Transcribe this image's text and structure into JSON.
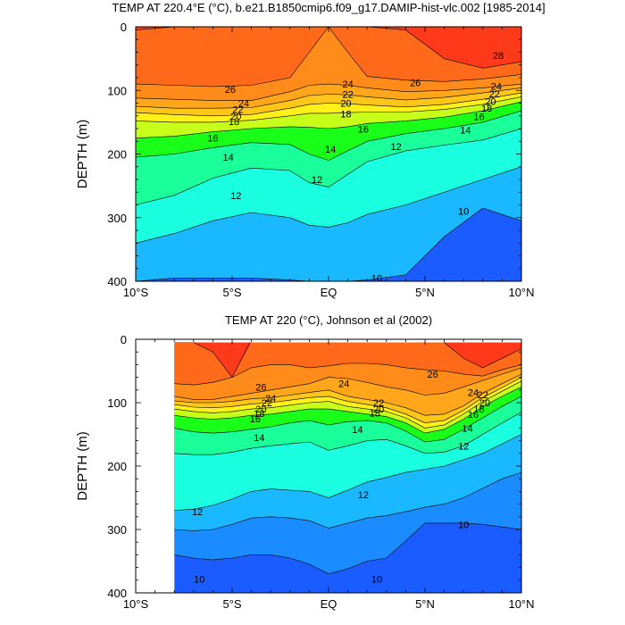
{
  "chart_data": [
    {
      "type": "contour",
      "title": "TEMP AT 220.4°E (°C), b.e21.B1850cmip6.f09_g17.DAMIP-hist-vlc.002 [1985-2014]",
      "xlabel": "",
      "ylabel": "DEPTH (m)",
      "xlim": [
        -10,
        10
      ],
      "ylim": [
        400,
        0
      ],
      "x_ticks": [
        {
          "v": -10,
          "label": "10°S"
        },
        {
          "v": -5,
          "label": "5°S"
        },
        {
          "v": 0,
          "label": "EQ"
        },
        {
          "v": 5,
          "label": "5°N"
        },
        {
          "v": 10,
          "label": "10°N"
        }
      ],
      "y_ticks": [
        0,
        100,
        200,
        300,
        400
      ],
      "contour_interval": 1,
      "contour_labels": [
        {
          "text": "28",
          "x": 8.8,
          "y": 45
        },
        {
          "text": "26",
          "x": -5.1,
          "y": 98
        },
        {
          "text": "26",
          "x": 4.5,
          "y": 88
        },
        {
          "text": "24",
          "x": -4.4,
          "y": 120
        },
        {
          "text": "22",
          "x": -4.7,
          "y": 130
        },
        {
          "text": "20",
          "x": -4.8,
          "y": 140
        },
        {
          "text": "18",
          "x": -4.9,
          "y": 149
        },
        {
          "text": "16",
          "x": -6.0,
          "y": 175
        },
        {
          "text": "14",
          "x": -5.2,
          "y": 205
        },
        {
          "text": "12",
          "x": -4.8,
          "y": 265
        },
        {
          "text": "24",
          "x": 1.0,
          "y": 90
        },
        {
          "text": "22",
          "x": 1.0,
          "y": 106
        },
        {
          "text": "20",
          "x": 0.9,
          "y": 120
        },
        {
          "text": "18",
          "x": 0.9,
          "y": 137
        },
        {
          "text": "16",
          "x": 1.8,
          "y": 161
        },
        {
          "text": "14",
          "x": 0.1,
          "y": 192
        },
        {
          "text": "12",
          "x": -0.6,
          "y": 240
        },
        {
          "text": "12",
          "x": 3.5,
          "y": 188
        },
        {
          "text": "24",
          "x": 8.7,
          "y": 93
        },
        {
          "text": "22",
          "x": 8.6,
          "y": 105
        },
        {
          "text": "20",
          "x": 8.4,
          "y": 117
        },
        {
          "text": "18",
          "x": 8.2,
          "y": 128
        },
        {
          "text": "16",
          "x": 7.8,
          "y": 141
        },
        {
          "text": "14",
          "x": 7.1,
          "y": 162
        },
        {
          "text": "10",
          "x": 7.0,
          "y": 290
        },
        {
          "text": "10",
          "x": 2.5,
          "y": 395
        }
      ],
      "isotherm_depths": {
        "x": [
          -10,
          -8,
          -6,
          -4,
          -2,
          -1,
          0,
          1,
          2,
          4,
          6,
          8,
          10
        ],
        "t28": [
          5,
          0,
          0,
          0,
          0,
          0,
          0,
          0,
          0,
          5,
          50,
          65,
          55
        ],
        "t26": [
          90,
          92,
          94,
          92,
          80,
          40,
          0,
          40,
          78,
          84,
          86,
          82,
          75
        ],
        "t24": [
          112,
          114,
          116,
          116,
          102,
          92,
          90,
          92,
          96,
          102,
          100,
          96,
          90
        ],
        "t22": [
          125,
          128,
          128,
          127,
          116,
          108,
          106,
          107,
          110,
          115,
          111,
          104,
          96
        ],
        "t20": [
          135,
          138,
          140,
          138,
          128,
          122,
          120,
          121,
          123,
          126,
          122,
          114,
          104
        ],
        "t18": [
          148,
          150,
          150,
          147,
          140,
          136,
          136,
          135,
          134,
          134,
          130,
          122,
          110
        ],
        "t16": [
          175,
          172,
          165,
          160,
          157,
          158,
          160,
          157,
          152,
          148,
          142,
          132,
          118
        ],
        "t14": [
          205,
          200,
          190,
          182,
          185,
          200,
          210,
          195,
          180,
          168,
          160,
          150,
          132
        ],
        "t12": [
          280,
          265,
          238,
          222,
          226,
          245,
          252,
          232,
          212,
          195,
          186,
          178,
          160
        ],
        "t11": [
          340,
          325,
          305,
          292,
          300,
          312,
          315,
          308,
          295,
          280,
          260,
          240,
          220
        ],
        "t10": [
          400,
          395,
          395,
          395,
          398,
          400,
          400,
          400,
          398,
          390,
          330,
          285,
          305
        ]
      },
      "colors": {
        "t28": "#ff3a1a",
        "t26": "#ff6a1a",
        "t24": "#ff8c1a",
        "t22": "#ffa61a",
        "t20": "#ffc61a",
        "t18": "#fff01a",
        "t16": "#c8ff1a",
        "t14": "#1aff1a",
        "t12": "#1aff9a",
        "t11": "#1affe0",
        "t10": "#1ab8ff",
        "cold": "#1a8cff",
        "deep": "#1a5cff"
      }
    },
    {
      "type": "contour",
      "title": "TEMP AT 220 (°C), Johnson et al (2002)",
      "xlabel": "",
      "ylabel": "DEPTH (m)",
      "xlim": [
        -10,
        10
      ],
      "ylim": [
        400,
        0
      ],
      "data_xlim": [
        -8,
        10
      ],
      "data_ylim": [
        5,
        400
      ],
      "x_ticks": [
        {
          "v": -10,
          "label": "10°S"
        },
        {
          "v": -5,
          "label": "5°S"
        },
        {
          "v": 0,
          "label": "EQ"
        },
        {
          "v": 5,
          "label": "5°N"
        },
        {
          "v": 10,
          "label": "10°N"
        }
      ],
      "y_ticks": [
        0,
        100,
        200,
        300,
        400
      ],
      "contour_interval": 1,
      "contour_labels": [
        {
          "text": "26",
          "x": -3.5,
          "y": 75
        },
        {
          "text": "24",
          "x": -3.0,
          "y": 93
        },
        {
          "text": "22",
          "x": -3.2,
          "y": 100
        },
        {
          "text": "20",
          "x": -3.5,
          "y": 110
        },
        {
          "text": "18",
          "x": -3.6,
          "y": 117
        },
        {
          "text": "16",
          "x": -3.8,
          "y": 125
        },
        {
          "text": "14",
          "x": -3.6,
          "y": 155
        },
        {
          "text": "24",
          "x": 0.8,
          "y": 70
        },
        {
          "text": "26",
          "x": 5.4,
          "y": 55
        },
        {
          "text": "22",
          "x": 2.6,
          "y": 100
        },
        {
          "text": "20",
          "x": 2.6,
          "y": 110
        },
        {
          "text": "18",
          "x": 2.4,
          "y": 116
        },
        {
          "text": "14",
          "x": 1.5,
          "y": 142
        },
        {
          "text": "24",
          "x": 7.5,
          "y": 84
        },
        {
          "text": "22",
          "x": 8.0,
          "y": 87
        },
        {
          "text": "20",
          "x": 8.1,
          "y": 100
        },
        {
          "text": "18",
          "x": 7.8,
          "y": 110
        },
        {
          "text": "16",
          "x": 7.5,
          "y": 118
        },
        {
          "text": "14",
          "x": 7.2,
          "y": 140
        },
        {
          "text": "12",
          "x": 7.0,
          "y": 168
        },
        {
          "text": "12",
          "x": 1.8,
          "y": 245
        },
        {
          "text": "12",
          "x": -6.8,
          "y": 272
        },
        {
          "text": "10",
          "x": 7.0,
          "y": 292
        },
        {
          "text": "10",
          "x": -6.7,
          "y": 378
        },
        {
          "text": "10",
          "x": 2.5,
          "y": 378
        }
      ],
      "isotherm_depths": {
        "x": [
          -8,
          -7,
          -6,
          -5,
          -4,
          -3,
          -2,
          -1,
          0,
          1,
          2,
          3,
          4,
          5,
          6,
          7,
          8,
          9,
          10
        ],
        "t28": [
          5,
          5,
          20,
          60,
          0,
          0,
          0,
          0,
          0,
          0,
          0,
          0,
          0,
          0,
          5,
          30,
          45,
          30,
          15
        ],
        "t26": [
          70,
          72,
          68,
          60,
          45,
          40,
          40,
          45,
          42,
          38,
          38,
          40,
          45,
          48,
          50,
          55,
          58,
          48,
          40
        ],
        "t24": [
          90,
          95,
          95,
          90,
          85,
          80,
          75,
          70,
          60,
          62,
          68,
          75,
          80,
          88,
          85,
          75,
          65,
          55,
          45
        ],
        "t22": [
          97,
          100,
          100,
          98,
          94,
          92,
          88,
          84,
          80,
          90,
          95,
          100,
          108,
          120,
          118,
          105,
          85,
          70,
          55
        ],
        "t20": [
          103,
          107,
          108,
          106,
          102,
          100,
          96,
          92,
          90,
          98,
          103,
          108,
          118,
          132,
          128,
          112,
          92,
          76,
          60
        ],
        "t18": [
          110,
          114,
          116,
          114,
          110,
          108,
          104,
          100,
          98,
          106,
          110,
          114,
          124,
          140,
          135,
          118,
          98,
          82,
          66
        ],
        "t16": [
          120,
          124,
          126,
          124,
          120,
          118,
          114,
          110,
          110,
          114,
          118,
          122,
          132,
          148,
          142,
          126,
          106,
          90,
          75
        ],
        "t14": [
          140,
          146,
          148,
          146,
          142,
          138,
          132,
          128,
          135,
          130,
          128,
          132,
          145,
          162,
          158,
          142,
          124,
          106,
          90
        ],
        "t13": [
          180,
          182,
          182,
          178,
          172,
          168,
          165,
          162,
          175,
          168,
          160,
          158,
          168,
          180,
          178,
          168,
          150,
          132,
          115
        ],
        "t12": [
          270,
          268,
          262,
          252,
          240,
          236,
          238,
          240,
          250,
          238,
          225,
          218,
          210,
          205,
          200,
          190,
          180,
          165,
          150
        ],
        "t11": [
          300,
          302,
          300,
          292,
          282,
          280,
          282,
          286,
          298,
          290,
          282,
          278,
          272,
          265,
          260,
          250,
          235,
          220,
          210
        ],
        "t10": [
          340,
          345,
          348,
          345,
          340,
          340,
          345,
          355,
          370,
          362,
          350,
          345,
          318,
          290,
          290,
          290,
          292,
          296,
          300
        ]
      },
      "colors": {
        "t28": "#ff3a1a",
        "t26": "#ff6a1a",
        "t24": "#ff8c1a",
        "t22": "#ffa61a",
        "t20": "#ffc61a",
        "t18": "#fff01a",
        "t16": "#c8ff1a",
        "t14": "#1aff1a",
        "t13": "#1aff9a",
        "t12": "#1affe0",
        "t11": "#1ab8ff",
        "t10": "#1a8cff",
        "deep": "#1a5cff"
      }
    }
  ]
}
